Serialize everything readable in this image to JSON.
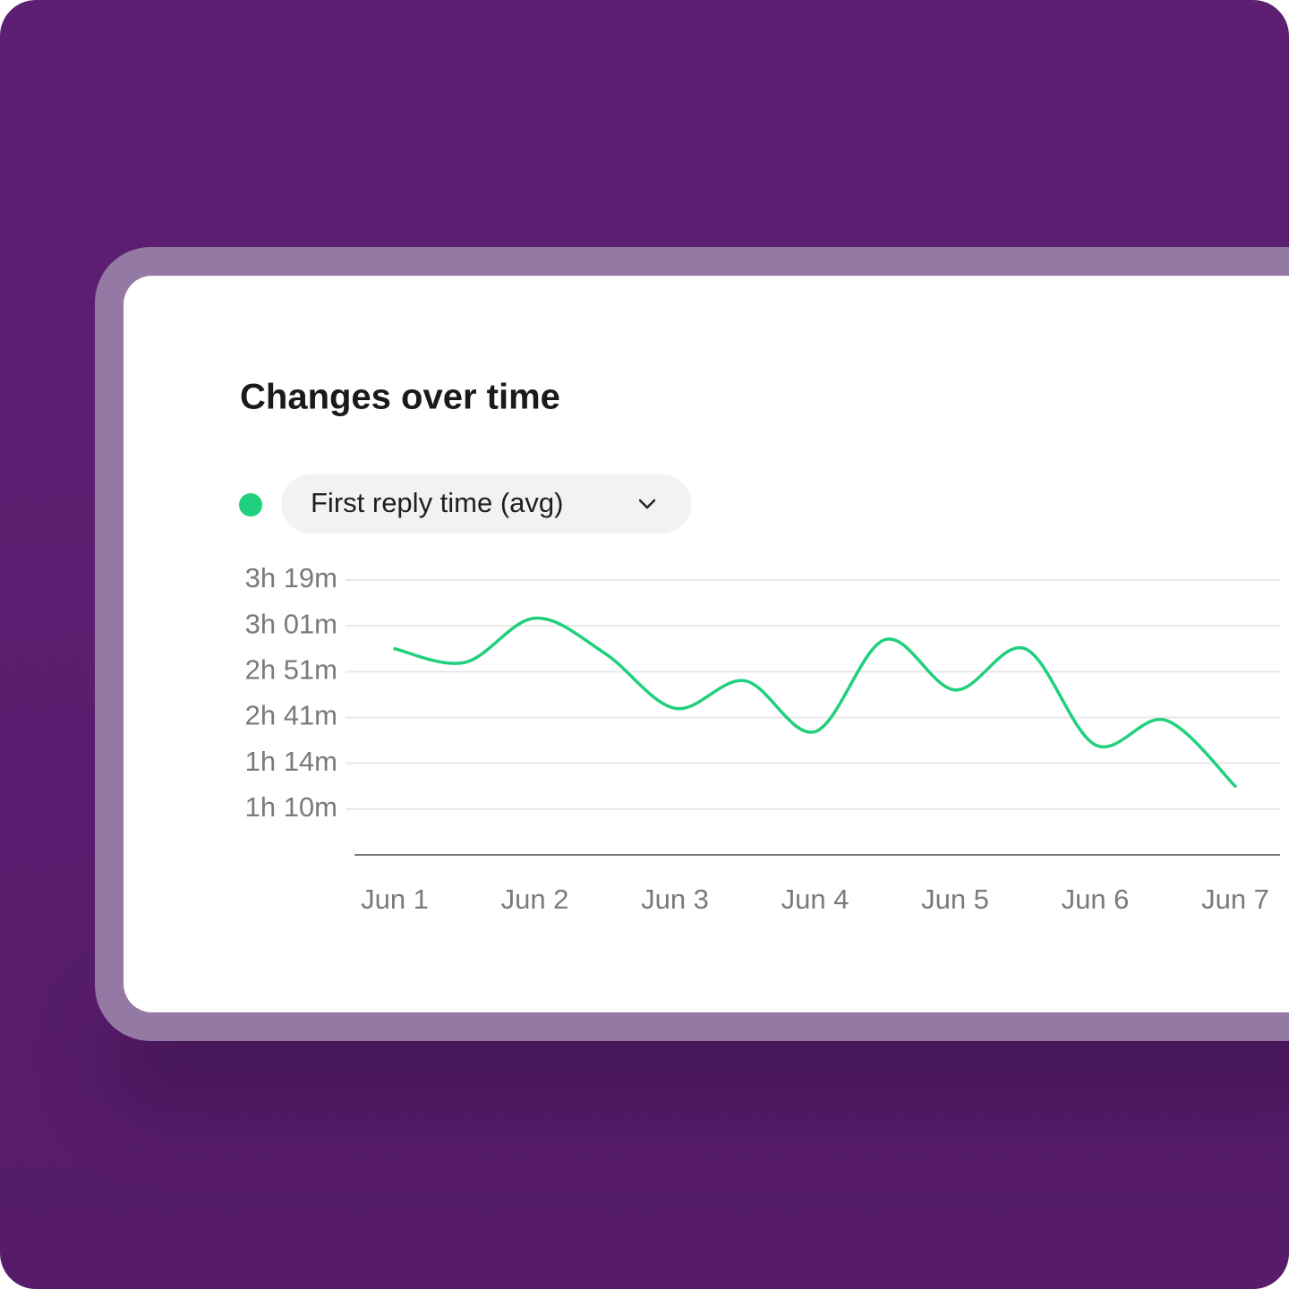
{
  "chart_data": {
    "type": "line",
    "title": "Changes over time",
    "x": [
      1,
      1.5,
      2,
      2.5,
      3,
      3.5,
      4,
      4.5,
      5,
      5.5,
      6,
      6.5,
      7
    ],
    "xlim": [
      1,
      7
    ],
    "xticks": [
      {
        "value": 1,
        "label": "Jun 1"
      },
      {
        "value": 2,
        "label": "Jun 2"
      },
      {
        "value": 3,
        "label": "Jun 3"
      },
      {
        "value": 4,
        "label": "Jun 4"
      },
      {
        "value": 5,
        "label": "Jun 5"
      },
      {
        "value": 6,
        "label": "Jun 6"
      },
      {
        "value": 7,
        "label": "Jun 7"
      }
    ],
    "series": [
      {
        "name": "First reply time (avg)",
        "color": "#1fd07c",
        "values": [
          176,
          173,
          184,
          175,
          163,
          169,
          134,
          178,
          167,
          176,
          109,
          156,
          72
        ]
      }
    ],
    "ylim": [
      66,
      199
    ],
    "yticks": [
      {
        "value": 199,
        "label": "3h 19m"
      },
      {
        "value": 181,
        "label": "3h 01m"
      },
      {
        "value": 171,
        "label": "2h 51m"
      },
      {
        "value": 161,
        "label": "2h 41m"
      },
      {
        "value": 74,
        "label": "1h 14m"
      },
      {
        "value": 70,
        "label": "1h 10m"
      }
    ],
    "y_scale": "piecewise",
    "grid": true
  }
}
